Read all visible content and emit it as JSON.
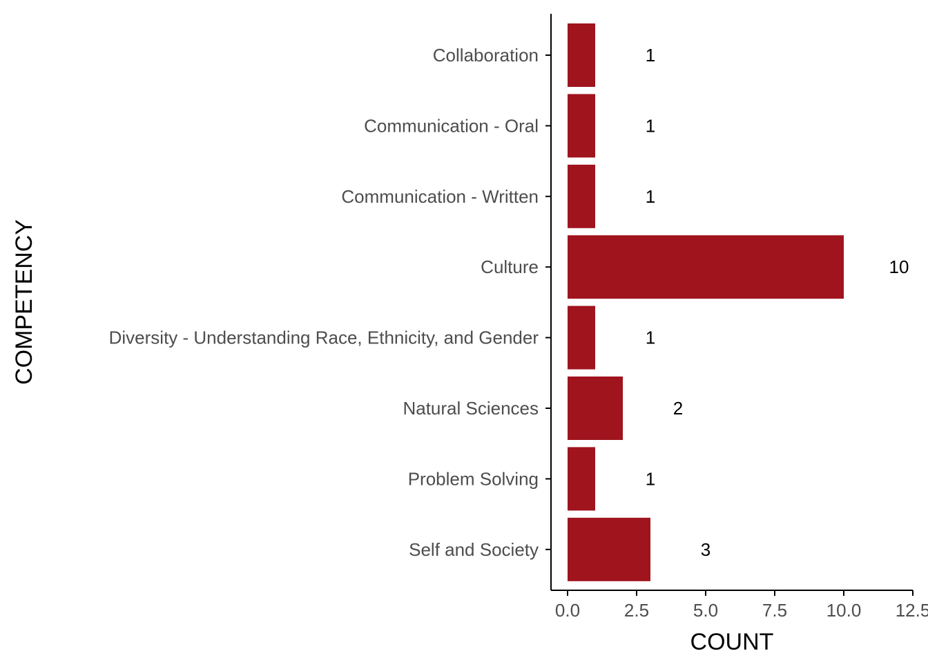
{
  "chart_data": {
    "type": "bar",
    "orientation": "horizontal",
    "categories": [
      "Collaboration",
      "Communication - Oral",
      "Communication - Written",
      "Culture",
      "Diversity - Understanding Race, Ethnicity, and Gender",
      "Natural Sciences",
      "Problem Solving",
      "Self and Society"
    ],
    "values": [
      1,
      1,
      1,
      10,
      1,
      2,
      1,
      3
    ],
    "data_labels": [
      "1",
      "1",
      "1",
      "10",
      "1",
      "2",
      "1",
      "3"
    ],
    "xlabel": "COUNT",
    "ylabel": "COMPETENCY",
    "xlim": [
      0,
      12.5
    ],
    "x_ticks": [
      0,
      2.5,
      5,
      7.5,
      10,
      12.5
    ],
    "x_tick_labels": [
      "0.0",
      "2.5",
      "5.0",
      "7.5",
      "10.0",
      "12.5"
    ],
    "grid": false,
    "bar_color": "#a0141e"
  }
}
